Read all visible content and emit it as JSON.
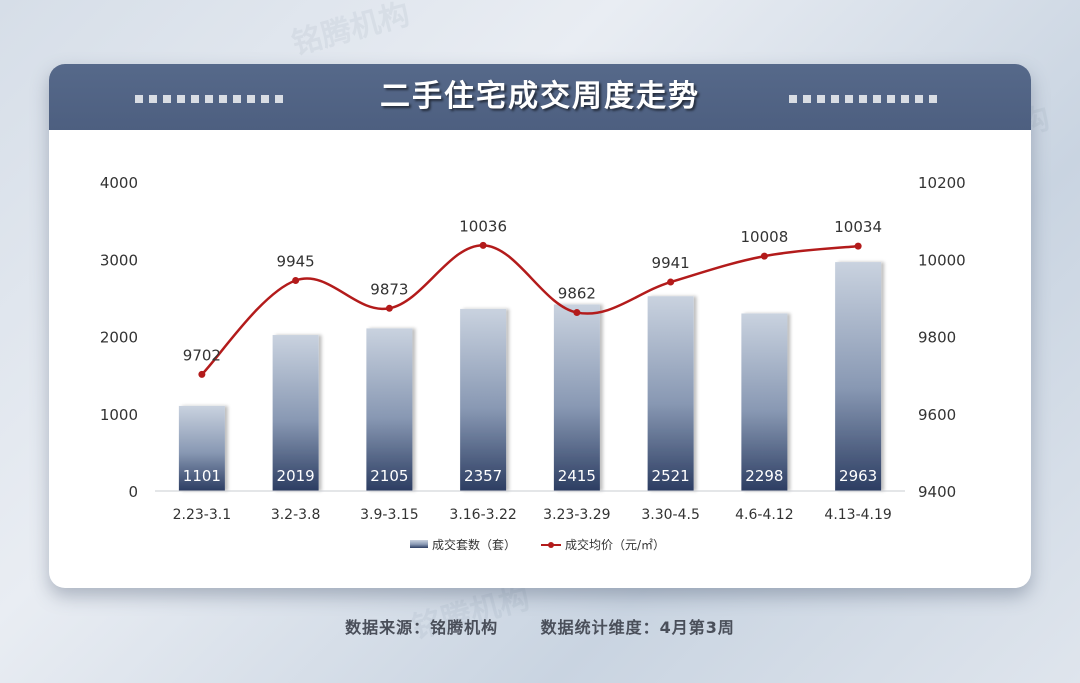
{
  "header": {
    "title": "二手住宅成交周度走势"
  },
  "footer": {
    "source": "数据来源：铭腾机构",
    "dimension": "数据统计维度：4月第3周"
  },
  "watermark_text": "铭腾机构",
  "colors": {
    "header": "#4f6284",
    "bar_top": "#c5cfdd",
    "bar_bottom": "#2e3f63",
    "line": "#b31b1b"
  },
  "chart_data": {
    "type": "bar+line",
    "categories": [
      "2.23-3.1",
      "3.2-3.8",
      "3.9-3.15",
      "3.16-3.22",
      "3.23-3.29",
      "3.30-4.5",
      "4.6-4.12",
      "4.13-4.19"
    ],
    "series": [
      {
        "name": "成交套数（套）",
        "type": "bar",
        "axis": "left",
        "values": [
          1101,
          2019,
          2105,
          2357,
          2415,
          2521,
          2298,
          2963
        ]
      },
      {
        "name": "成交均价（元/㎡）",
        "type": "line",
        "axis": "right",
        "values": [
          9702,
          9945,
          9873,
          10036,
          9862,
          9941,
          10008,
          10034
        ]
      }
    ],
    "y_left": {
      "min": 0,
      "max": 4000,
      "ticks": [
        0,
        1000,
        2000,
        3000,
        4000
      ]
    },
    "y_right": {
      "min": 9400,
      "max": 10200,
      "ticks": [
        9400,
        9600,
        9800,
        10000,
        10200
      ]
    },
    "grid": false,
    "legend": "bottom"
  }
}
